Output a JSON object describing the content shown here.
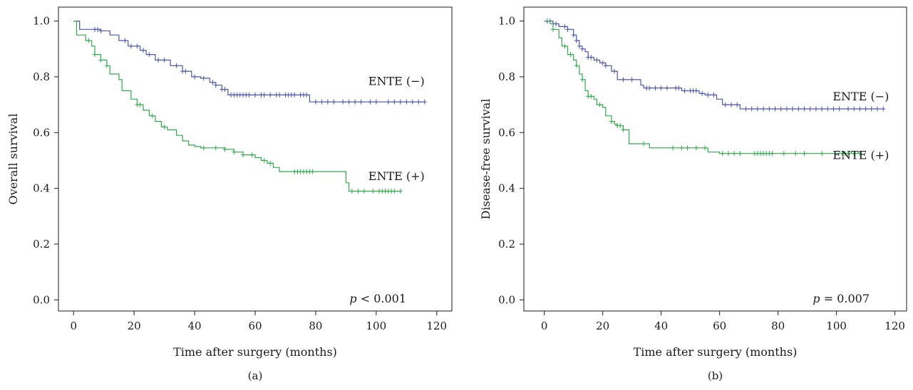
{
  "chart_data": [
    {
      "type": "line",
      "subtype": "kaplan-meier",
      "panel_label": "(a)",
      "xlabel": "Time after surgery (months)",
      "ylabel": "Overall survival",
      "xlim": [
        -5,
        125
      ],
      "ylim": [
        -0.04,
        1.05
      ],
      "xticks": [
        0,
        20,
        40,
        60,
        80,
        100,
        120
      ],
      "yticks": [
        0.0,
        0.2,
        0.4,
        0.6,
        0.8,
        1.0
      ],
      "ytick_labels": [
        "0.0",
        "0.2",
        "0.4",
        "0.6",
        "0.8",
        "1.0"
      ],
      "p_label": "p",
      "p_text": " < 0.001",
      "grid": false,
      "series": [
        {
          "name": "ENTE (−)",
          "color": "#4a55a8",
          "label_x": 116,
          "label_y": 0.77,
          "steps": [
            [
              0,
              1.0
            ],
            [
              2,
              0.97
            ],
            [
              9,
              0.965
            ],
            [
              12,
              0.95
            ],
            [
              15,
              0.93
            ],
            [
              18,
              0.91
            ],
            [
              22,
              0.895
            ],
            [
              24,
              0.88
            ],
            [
              27,
              0.86
            ],
            [
              32,
              0.84
            ],
            [
              36,
              0.82
            ],
            [
              39,
              0.8
            ],
            [
              42,
              0.795
            ],
            [
              45,
              0.78
            ],
            [
              47,
              0.77
            ],
            [
              49,
              0.755
            ],
            [
              51,
              0.735
            ],
            [
              78,
              0.71
            ],
            [
              116,
              0.71
            ]
          ],
          "censor": [
            7,
            8,
            9,
            17,
            19,
            21,
            23,
            25,
            28,
            30,
            34,
            36,
            37,
            40,
            43,
            46,
            47,
            49,
            50,
            52,
            53,
            54,
            55,
            56,
            57,
            58,
            60,
            62,
            63,
            65,
            67,
            68,
            70,
            71,
            72,
            73,
            75,
            76,
            77,
            80,
            82,
            84,
            86,
            89,
            91,
            93,
            95,
            98,
            100,
            104,
            106,
            108,
            110,
            112,
            114,
            116
          ]
        },
        {
          "name": "ENTE (+)",
          "color": "#2eaa4a",
          "label_x": 116,
          "label_y": 0.43,
          "steps": [
            [
              0,
              1.0
            ],
            [
              1,
              0.95
            ],
            [
              4,
              0.93
            ],
            [
              6,
              0.91
            ],
            [
              7,
              0.88
            ],
            [
              9,
              0.86
            ],
            [
              11,
              0.84
            ],
            [
              12,
              0.81
            ],
            [
              15,
              0.79
            ],
            [
              16,
              0.75
            ],
            [
              19,
              0.72
            ],
            [
              21,
              0.7
            ],
            [
              23,
              0.68
            ],
            [
              25,
              0.66
            ],
            [
              27,
              0.64
            ],
            [
              29,
              0.62
            ],
            [
              31,
              0.61
            ],
            [
              34,
              0.59
            ],
            [
              36,
              0.57
            ],
            [
              38,
              0.555
            ],
            [
              40,
              0.55
            ],
            [
              42,
              0.545
            ],
            [
              50,
              0.54
            ],
            [
              53,
              0.53
            ],
            [
              56,
              0.52
            ],
            [
              60,
              0.51
            ],
            [
              62,
              0.5
            ],
            [
              64,
              0.49
            ],
            [
              66,
              0.475
            ],
            [
              68,
              0.46
            ],
            [
              90,
              0.42
            ],
            [
              91,
              0.39
            ],
            [
              108,
              0.39
            ]
          ],
          "censor": [
            5,
            7,
            9,
            11,
            21,
            22,
            26,
            30,
            43,
            47,
            50,
            53,
            56,
            59,
            63,
            65,
            73,
            74,
            75,
            76,
            77,
            78,
            79,
            92,
            94,
            96,
            99,
            101,
            102,
            103,
            104,
            105,
            106,
            108
          ]
        }
      ]
    },
    {
      "type": "line",
      "subtype": "kaplan-meier",
      "panel_label": "(b)",
      "xlabel": "Time after surgery (months)",
      "ylabel": "Disease-free survival",
      "xlim": [
        -7,
        124
      ],
      "ylim": [
        -0.04,
        1.05
      ],
      "xticks": [
        0,
        20,
        40,
        60,
        80,
        100,
        120
      ],
      "yticks": [
        0.0,
        0.2,
        0.4,
        0.6,
        0.8,
        1.0
      ],
      "ytick_labels": [
        "0.0",
        "0.2",
        "0.4",
        "0.6",
        "0.8",
        "1.0"
      ],
      "p_label": "p",
      "p_text": " = 0.007",
      "grid": false,
      "series": [
        {
          "name": "ENTE (−)",
          "color": "#4a55a8",
          "label_x": 118,
          "label_y": 0.715,
          "steps": [
            [
              0,
              1.0
            ],
            [
              3,
              0.99
            ],
            [
              5,
              0.98
            ],
            [
              8,
              0.97
            ],
            [
              10,
              0.95
            ],
            [
              11,
              0.93
            ],
            [
              12,
              0.91
            ],
            [
              13,
              0.9
            ],
            [
              14,
              0.89
            ],
            [
              15,
              0.87
            ],
            [
              17,
              0.86
            ],
            [
              19,
              0.85
            ],
            [
              21,
              0.84
            ],
            [
              23,
              0.82
            ],
            [
              25,
              0.79
            ],
            [
              33,
              0.77
            ],
            [
              34,
              0.76
            ],
            [
              47,
              0.75
            ],
            [
              53,
              0.74
            ],
            [
              55,
              0.735
            ],
            [
              59,
              0.72
            ],
            [
              61,
              0.7
            ],
            [
              67,
              0.685
            ],
            [
              116,
              0.685
            ]
          ],
          "censor": [
            1,
            2,
            3,
            4,
            7,
            8,
            10,
            11,
            12,
            13,
            15,
            16,
            18,
            20,
            21,
            24,
            27,
            30,
            35,
            36,
            38,
            40,
            42,
            45,
            46,
            48,
            50,
            51,
            52,
            54,
            56,
            58,
            62,
            64,
            66,
            69,
            71,
            73,
            75,
            77,
            79,
            81,
            83,
            85,
            87,
            89,
            91,
            93,
            95,
            97,
            99,
            101,
            104,
            106,
            108,
            110,
            112,
            114,
            116
          ]
        },
        {
          "name": "ENTE (+)",
          "color": "#2eaa4a",
          "label_x": 118,
          "label_y": 0.505,
          "steps": [
            [
              0,
              1.0
            ],
            [
              2,
              0.99
            ],
            [
              3,
              0.97
            ],
            [
              5,
              0.94
            ],
            [
              6,
              0.91
            ],
            [
              8,
              0.88
            ],
            [
              10,
              0.86
            ],
            [
              11,
              0.84
            ],
            [
              12,
              0.81
            ],
            [
              13,
              0.79
            ],
            [
              14,
              0.75
            ],
            [
              15,
              0.73
            ],
            [
              17,
              0.72
            ],
            [
              18,
              0.7
            ],
            [
              20,
              0.69
            ],
            [
              21,
              0.66
            ],
            [
              23,
              0.64
            ],
            [
              24,
              0.63
            ],
            [
              25,
              0.625
            ],
            [
              27,
              0.61
            ],
            [
              29,
              0.56
            ],
            [
              36,
              0.545
            ],
            [
              56,
              0.53
            ],
            [
              60,
              0.525
            ],
            [
              108,
              0.525
            ]
          ],
          "censor": [
            3,
            7,
            9,
            11,
            13,
            15,
            16,
            19,
            23,
            25,
            26,
            27,
            34,
            44,
            47,
            49,
            52,
            55,
            61,
            63,
            65,
            67,
            72,
            73,
            74,
            75,
            76,
            77,
            78,
            82,
            86,
            89,
            95,
            102,
            103,
            104,
            106,
            108
          ]
        }
      ]
    }
  ]
}
